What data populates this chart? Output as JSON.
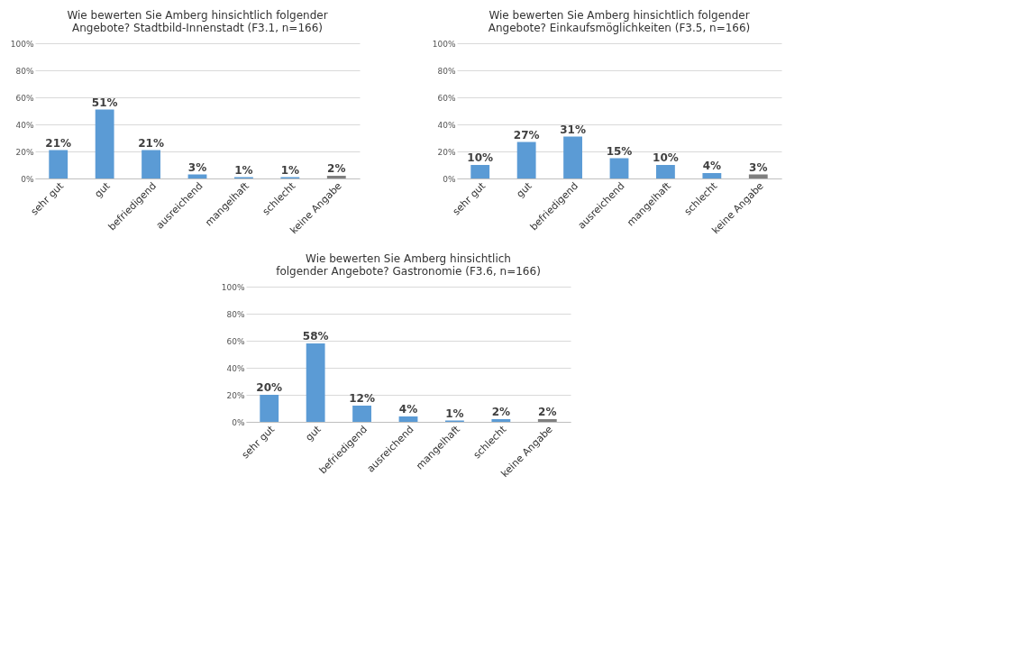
{
  "chart_data": [
    {
      "type": "bar",
      "title": "Wie bewerten Sie Amberg hinsichtlich folgender Angebote? Stadtbild-Innenstadt (F3.1, n=166)",
      "categories": [
        "sehr gut",
        "gut",
        "befriedigend",
        "ausreichend",
        "mangelhaft",
        "schlecht",
        "keine Angabe"
      ],
      "values": [
        21,
        51,
        21,
        3,
        1,
        1,
        2
      ],
      "value_labels": [
        "21%",
        "51%",
        "21%",
        "3%",
        "1%",
        "1%",
        "2%"
      ],
      "colors": [
        "#5b9bd5",
        "#5b9bd5",
        "#5b9bd5",
        "#5b9bd5",
        "#5b9bd5",
        "#5b9bd5",
        "#7f7f7f"
      ],
      "ylim": [
        0,
        100
      ],
      "yticks": [
        {
          "value": 0,
          "label": "0%"
        },
        {
          "value": 20,
          "label": "20%"
        },
        {
          "value": 40,
          "label": "40%"
        },
        {
          "value": 60,
          "label": "60%"
        },
        {
          "value": 80,
          "label": "80%"
        },
        {
          "value": 100,
          "label": "100%"
        }
      ],
      "grid": "y"
    },
    {
      "type": "bar",
      "title": "Wie bewerten Sie Amberg hinsichtlich folgender Angebote? Einkaufsmöglichkeiten (F3.5, n=166)",
      "categories": [
        "sehr gut",
        "gut",
        "befriedigend",
        "ausreichend",
        "mangelhaft",
        "schlecht",
        "keine Angabe"
      ],
      "values": [
        10,
        27,
        31,
        15,
        10,
        4,
        3
      ],
      "value_labels": [
        "10%",
        "27%",
        "31%",
        "15%",
        "10%",
        "4%",
        "3%"
      ],
      "colors": [
        "#5b9bd5",
        "#5b9bd5",
        "#5b9bd5",
        "#5b9bd5",
        "#5b9bd5",
        "#5b9bd5",
        "#7f7f7f"
      ],
      "ylim": [
        0,
        100
      ],
      "yticks": [
        {
          "value": 0,
          "label": "0%"
        },
        {
          "value": 20,
          "label": "20%"
        },
        {
          "value": 40,
          "label": "40%"
        },
        {
          "value": 60,
          "label": "60%"
        },
        {
          "value": 80,
          "label": "80%"
        },
        {
          "value": 100,
          "label": "100%"
        }
      ],
      "grid": "y"
    },
    {
      "type": "bar",
      "title": "Wie bewerten Sie Amberg hinsichtlich folgender Angebote? Gastronomie (F3.6, n=166)",
      "categories": [
        "sehr gut",
        "gut",
        "befriedigend",
        "ausreichend",
        "mangelhaft",
        "schlecht",
        "keine Angabe"
      ],
      "values": [
        20,
        58,
        12,
        4,
        1,
        2,
        2
      ],
      "value_labels": [
        "20%",
        "58%",
        "12%",
        "4%",
        "1%",
        "2%",
        "2%"
      ],
      "colors": [
        "#5b9bd5",
        "#5b9bd5",
        "#5b9bd5",
        "#5b9bd5",
        "#5b9bd5",
        "#5b9bd5",
        "#7f7f7f"
      ],
      "ylim": [
        0,
        100
      ],
      "yticks": [
        {
          "value": 0,
          "label": "0%"
        },
        {
          "value": 20,
          "label": "20%"
        },
        {
          "value": 40,
          "label": "40%"
        },
        {
          "value": 60,
          "label": "60%"
        },
        {
          "value": 80,
          "label": "80%"
        },
        {
          "value": 100,
          "label": "100%"
        }
      ],
      "grid": "y"
    }
  ]
}
